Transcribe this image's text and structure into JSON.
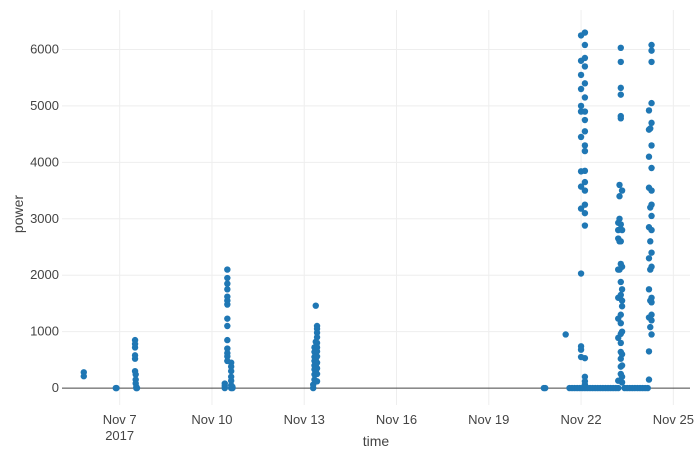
{
  "chart_data": {
    "type": "scatter",
    "title": "",
    "xlabel": "time",
    "ylabel": "power",
    "x_ticks": [
      {
        "date": "2017-11-07",
        "label": "Nov 7",
        "sublabel": "2017"
      },
      {
        "date": "2017-11-10",
        "label": "Nov 10",
        "sublabel": ""
      },
      {
        "date": "2017-11-13",
        "label": "Nov 13",
        "sublabel": ""
      },
      {
        "date": "2017-11-16",
        "label": "Nov 16",
        "sublabel": ""
      },
      {
        "date": "2017-11-19",
        "label": "Nov 19",
        "sublabel": ""
      },
      {
        "date": "2017-11-22",
        "label": "Nov 22",
        "sublabel": ""
      },
      {
        "date": "2017-11-25",
        "label": "Nov 25",
        "sublabel": ""
      }
    ],
    "y_ticks": [
      0,
      1000,
      2000,
      3000,
      4000,
      5000,
      6000
    ],
    "y_tick_labels": [
      "0",
      "1000",
      "2000",
      "3000",
      "4000",
      "5000",
      "6000"
    ],
    "xlim": [
      "2017-11-05T03:00",
      "2017-11-25T13:00"
    ],
    "ylim": [
      -300,
      6700
    ],
    "grid": true,
    "color": "#1f77b4",
    "series": [
      {
        "points": [
          [
            "2017-11-05T20:00",
            280
          ],
          [
            "2017-11-05T20:00",
            210
          ],
          [
            "2017-11-06T21:00",
            0
          ],
          [
            "2017-11-06T21:30",
            0
          ],
          [
            "2017-11-07T12:00",
            850
          ],
          [
            "2017-11-07T12:00",
            780
          ],
          [
            "2017-11-07T12:00",
            720
          ],
          [
            "2017-11-07T12:00",
            580
          ],
          [
            "2017-11-07T12:00",
            520
          ],
          [
            "2017-11-07T12:00",
            300
          ],
          [
            "2017-11-07T12:30",
            240
          ],
          [
            "2017-11-07T12:30",
            150
          ],
          [
            "2017-11-07T12:30",
            80
          ],
          [
            "2017-11-07T13:00",
            20
          ],
          [
            "2017-11-07T13:00",
            0
          ],
          [
            "2017-11-07T13:30",
            0
          ],
          [
            "2017-11-10T10:00",
            80
          ],
          [
            "2017-11-10T10:00",
            40
          ],
          [
            "2017-11-10T10:00",
            0
          ],
          [
            "2017-11-10T12:00",
            2100
          ],
          [
            "2017-11-10T12:00",
            1950
          ],
          [
            "2017-11-10T12:00",
            1850
          ],
          [
            "2017-11-10T12:00",
            1750
          ],
          [
            "2017-11-10T12:00",
            1620
          ],
          [
            "2017-11-10T12:00",
            1550
          ],
          [
            "2017-11-10T12:00",
            1480
          ],
          [
            "2017-11-10T12:00",
            1230
          ],
          [
            "2017-11-10T12:00",
            1100
          ],
          [
            "2017-11-10T12:00",
            850
          ],
          [
            "2017-11-10T12:00",
            700
          ],
          [
            "2017-11-10T12:00",
            620
          ],
          [
            "2017-11-10T12:00",
            560
          ],
          [
            "2017-11-10T12:00",
            480
          ],
          [
            "2017-11-10T15:00",
            450
          ],
          [
            "2017-11-10T15:00",
            380
          ],
          [
            "2017-11-10T15:00",
            300
          ],
          [
            "2017-11-10T15:00",
            200
          ],
          [
            "2017-11-10T15:00",
            130
          ],
          [
            "2017-11-10T15:00",
            50
          ],
          [
            "2017-11-10T15:00",
            0
          ],
          [
            "2017-11-10T16:00",
            0
          ],
          [
            "2017-11-10T16:00",
            20
          ],
          [
            "2017-11-13T07:00",
            0
          ],
          [
            "2017-11-13T07:00",
            60
          ],
          [
            "2017-11-13T08:00",
            150
          ],
          [
            "2017-11-13T08:00",
            240
          ],
          [
            "2017-11-13T08:00",
            330
          ],
          [
            "2017-11-13T08:00",
            400
          ],
          [
            "2017-11-13T08:00",
            480
          ],
          [
            "2017-11-13T08:00",
            550
          ],
          [
            "2017-11-13T08:00",
            640
          ],
          [
            "2017-11-13T08:00",
            720
          ],
          [
            "2017-11-13T09:00",
            820
          ],
          [
            "2017-11-13T09:00",
            1460
          ],
          [
            "2017-11-13T09:00",
            300
          ],
          [
            "2017-11-13T09:00",
            400
          ],
          [
            "2017-11-13T09:00",
            500
          ],
          [
            "2017-11-13T09:00",
            600
          ],
          [
            "2017-11-13T09:00",
            680
          ],
          [
            "2017-11-13T10:00",
            1100
          ],
          [
            "2017-11-13T10:00",
            1050
          ],
          [
            "2017-11-13T10:00",
            980
          ],
          [
            "2017-11-13T10:00",
            900
          ],
          [
            "2017-11-13T10:00",
            800
          ],
          [
            "2017-11-13T10:00",
            720
          ],
          [
            "2017-11-13T10:00",
            650
          ],
          [
            "2017-11-13T10:00",
            560
          ],
          [
            "2017-11-13T10:00",
            450
          ],
          [
            "2017-11-13T10:00",
            350
          ],
          [
            "2017-11-13T10:00",
            250
          ],
          [
            "2017-11-13T10:00",
            120
          ],
          [
            "2017-11-20T19:00",
            0
          ],
          [
            "2017-11-20T20:00",
            0
          ],
          [
            "2017-11-21T12:00",
            950
          ],
          [
            "2017-11-21T15:00",
            0
          ],
          [
            "2017-11-21T17:00",
            0
          ],
          [
            "2017-11-21T19:00",
            0
          ],
          [
            "2017-11-21T21:00",
            0
          ],
          [
            "2017-11-21T23:00",
            0
          ],
          [
            "2017-11-22T01:00",
            0
          ],
          [
            "2017-11-22T03:00",
            0
          ],
          [
            "2017-11-22T05:00",
            0
          ],
          [
            "2017-11-22T07:00",
            0
          ],
          [
            "2017-11-22T09:00",
            0
          ],
          [
            "2017-11-22T11:00",
            0
          ],
          [
            "2017-11-22T13:00",
            0
          ],
          [
            "2017-11-22T15:00",
            0
          ],
          [
            "2017-11-22T17:00",
            0
          ],
          [
            "2017-11-22T19:00",
            0
          ],
          [
            "2017-11-22T21:00",
            0
          ],
          [
            "2017-11-22T23:00",
            0
          ],
          [
            "2017-11-23T01:00",
            0
          ],
          [
            "2017-11-23T03:00",
            0
          ],
          [
            "2017-11-23T05:00",
            0
          ],
          [
            "2017-11-22T00:00",
            740
          ],
          [
            "2017-11-22T00:00",
            680
          ],
          [
            "2017-11-22T00:00",
            550
          ],
          [
            "2017-11-22T00:00",
            2030
          ],
          [
            "2017-11-22T00:00",
            3180
          ],
          [
            "2017-11-22T00:00",
            3570
          ],
          [
            "2017-11-22T00:00",
            3840
          ],
          [
            "2017-11-22T00:00",
            4450
          ],
          [
            "2017-11-22T00:00",
            4900
          ],
          [
            "2017-11-22T00:00",
            5000
          ],
          [
            "2017-11-22T00:00",
            5300
          ],
          [
            "2017-11-22T00:00",
            5550
          ],
          [
            "2017-11-22T00:00",
            5800
          ],
          [
            "2017-11-22T00:00",
            6250
          ],
          [
            "2017-11-22T03:00",
            6300
          ],
          [
            "2017-11-22T03:00",
            6080
          ],
          [
            "2017-11-22T03:00",
            5850
          ],
          [
            "2017-11-22T03:00",
            5700
          ],
          [
            "2017-11-22T03:00",
            5400
          ],
          [
            "2017-11-22T03:00",
            5150
          ],
          [
            "2017-11-22T03:00",
            4900
          ],
          [
            "2017-11-22T03:00",
            4750
          ],
          [
            "2017-11-22T03:00",
            4550
          ],
          [
            "2017-11-22T03:00",
            4300
          ],
          [
            "2017-11-22T03:00",
            4200
          ],
          [
            "2017-11-22T03:00",
            3850
          ],
          [
            "2017-11-22T03:00",
            3650
          ],
          [
            "2017-11-22T03:00",
            3500
          ],
          [
            "2017-11-22T03:00",
            3250
          ],
          [
            "2017-11-22T03:00",
            3100
          ],
          [
            "2017-11-22T03:00",
            2880
          ],
          [
            "2017-11-22T03:00",
            530
          ],
          [
            "2017-11-22T03:00",
            200
          ],
          [
            "2017-11-22T03:00",
            120
          ],
          [
            "2017-11-22T03:00",
            60
          ],
          [
            "2017-11-23T05:00",
            2930
          ],
          [
            "2017-11-23T05:00",
            2800
          ],
          [
            "2017-11-23T05:00",
            2650
          ],
          [
            "2017-11-23T05:00",
            2100
          ],
          [
            "2017-11-23T05:00",
            1600
          ],
          [
            "2017-11-23T05:00",
            1230
          ],
          [
            "2017-11-23T05:00",
            890
          ],
          [
            "2017-11-23T05:00",
            130
          ],
          [
            "2017-11-23T06:00",
            3600
          ],
          [
            "2017-11-23T06:00",
            3400
          ],
          [
            "2017-11-23T06:00",
            3000
          ],
          [
            "2017-11-23T06:00",
            2600
          ],
          [
            "2017-11-23T06:00",
            2100
          ],
          [
            "2017-11-23T07:00",
            6030
          ],
          [
            "2017-11-23T07:00",
            5780
          ],
          [
            "2017-11-23T07:00",
            5320
          ],
          [
            "2017-11-23T07:00",
            5200
          ],
          [
            "2017-11-23T07:00",
            4820
          ],
          [
            "2017-11-23T07:00",
            4780
          ],
          [
            "2017-11-23T07:00",
            2900
          ],
          [
            "2017-11-23T07:00",
            2600
          ],
          [
            "2017-11-23T07:00",
            2200
          ],
          [
            "2017-11-23T07:00",
            1880
          ],
          [
            "2017-11-23T07:00",
            1650
          ],
          [
            "2017-11-23T07:00",
            1300
          ],
          [
            "2017-11-23T07:00",
            1150
          ],
          [
            "2017-11-23T07:00",
            960
          ],
          [
            "2017-11-23T07:00",
            800
          ],
          [
            "2017-11-23T07:00",
            640
          ],
          [
            "2017-11-23T07:00",
            520
          ],
          [
            "2017-11-23T07:00",
            380
          ],
          [
            "2017-11-23T07:00",
            250
          ],
          [
            "2017-11-23T08:00",
            3500
          ],
          [
            "2017-11-23T08:00",
            2800
          ],
          [
            "2017-11-23T08:00",
            2150
          ],
          [
            "2017-11-23T08:00",
            1750
          ],
          [
            "2017-11-23T08:00",
            1550
          ],
          [
            "2017-11-23T08:00",
            1450
          ],
          [
            "2017-11-23T08:00",
            1000
          ],
          [
            "2017-11-23T08:00",
            600
          ],
          [
            "2017-11-23T08:00",
            400
          ],
          [
            "2017-11-23T08:00",
            200
          ],
          [
            "2017-11-23T08:00",
            100
          ],
          [
            "2017-11-23T10:00",
            0
          ],
          [
            "2017-11-23T12:00",
            0
          ],
          [
            "2017-11-23T14:00",
            0
          ],
          [
            "2017-11-23T16:00",
            0
          ],
          [
            "2017-11-23T18:00",
            0
          ],
          [
            "2017-11-23T20:00",
            0
          ],
          [
            "2017-11-23T22:00",
            0
          ],
          [
            "2017-11-24T00:00",
            0
          ],
          [
            "2017-11-24T02:00",
            0
          ],
          [
            "2017-11-24T04:00",
            0
          ],
          [
            "2017-11-24T05:00",
            150
          ],
          [
            "2017-11-24T05:00",
            650
          ],
          [
            "2017-11-24T05:00",
            1250
          ],
          [
            "2017-11-24T05:00",
            1750
          ],
          [
            "2017-11-24T05:00",
            2300
          ],
          [
            "2017-11-24T05:00",
            2850
          ],
          [
            "2017-11-24T05:00",
            3550
          ],
          [
            "2017-11-24T05:00",
            4100
          ],
          [
            "2017-11-24T05:00",
            4580
          ],
          [
            "2017-11-24T05:00",
            4920
          ],
          [
            "2017-11-24T07:00",
            6080
          ],
          [
            "2017-11-24T07:00",
            5980
          ],
          [
            "2017-11-24T07:00",
            5780
          ],
          [
            "2017-11-24T07:00",
            5050
          ],
          [
            "2017-11-24T07:00",
            4700
          ],
          [
            "2017-11-24T07:00",
            4300
          ],
          [
            "2017-11-24T07:00",
            3900
          ],
          [
            "2017-11-24T07:00",
            3500
          ],
          [
            "2017-11-24T07:00",
            3250
          ],
          [
            "2017-11-24T07:00",
            3050
          ],
          [
            "2017-11-24T07:00",
            2800
          ],
          [
            "2017-11-24T07:00",
            2400
          ],
          [
            "2017-11-24T07:00",
            2150
          ],
          [
            "2017-11-24T07:00",
            1600
          ],
          [
            "2017-11-24T07:00",
            1520
          ],
          [
            "2017-11-24T07:00",
            1300
          ],
          [
            "2017-11-24T07:00",
            1200
          ],
          [
            "2017-11-24T07:00",
            950
          ],
          [
            "2017-11-24T06:00",
            1080
          ],
          [
            "2017-11-24T06:00",
            1550
          ],
          [
            "2017-11-24T06:00",
            2100
          ],
          [
            "2017-11-24T06:00",
            2600
          ],
          [
            "2017-11-24T06:00",
            3200
          ],
          [
            "2017-11-24T06:00",
            4600
          ]
        ]
      }
    ]
  }
}
